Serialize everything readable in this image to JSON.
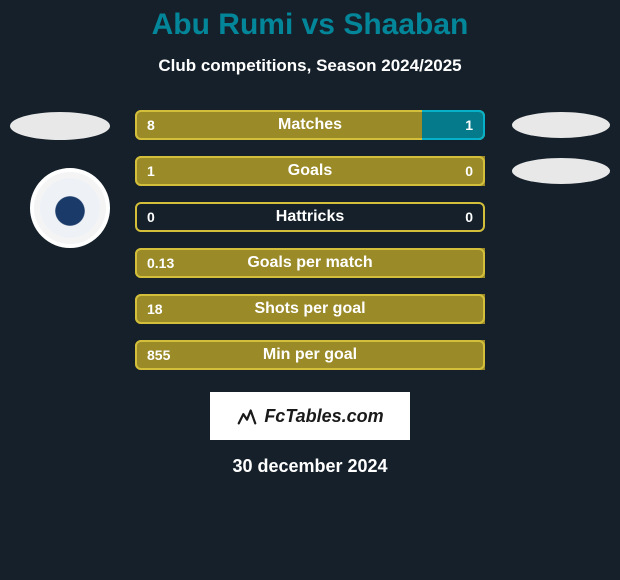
{
  "title": "Abu Rumi vs Shaaban",
  "subtitle": "Club competitions, Season 2024/2025",
  "colors": {
    "background": "#15202a",
    "title": "#038699",
    "text": "#ffffff",
    "player1_fill": "#9a8a28",
    "player1_border": "#d4bf3a",
    "player2_fill": "#047a8a",
    "player2_border": "#05b0c8",
    "empty_fill": "transparent"
  },
  "stats": [
    {
      "label": "Matches",
      "p1": "8",
      "p2": "1",
      "p1_width": 82,
      "p2_width": 18,
      "p1_filled": true,
      "p2_filled": true
    },
    {
      "label": "Goals",
      "p1": "1",
      "p2": "0",
      "p1_width": 100,
      "p2_width": 0,
      "p1_filled": true,
      "p2_filled": false
    },
    {
      "label": "Hattricks",
      "p1": "0",
      "p2": "0",
      "p1_width": 50,
      "p2_width": 50,
      "p1_filled": false,
      "p2_filled": false
    },
    {
      "label": "Goals per match",
      "p1": "0.13",
      "p2": "",
      "p1_width": 100,
      "p2_width": 0,
      "p1_filled": true,
      "p2_filled": false
    },
    {
      "label": "Shots per goal",
      "p1": "18",
      "p2": "",
      "p1_width": 100,
      "p2_width": 0,
      "p1_filled": true,
      "p2_filled": false
    },
    {
      "label": "Min per goal",
      "p1": "855",
      "p2": "",
      "p1_width": 100,
      "p2_width": 0,
      "p1_filled": true,
      "p2_filled": false
    }
  ],
  "watermark": "FcTables.com",
  "date": "30 december 2024"
}
